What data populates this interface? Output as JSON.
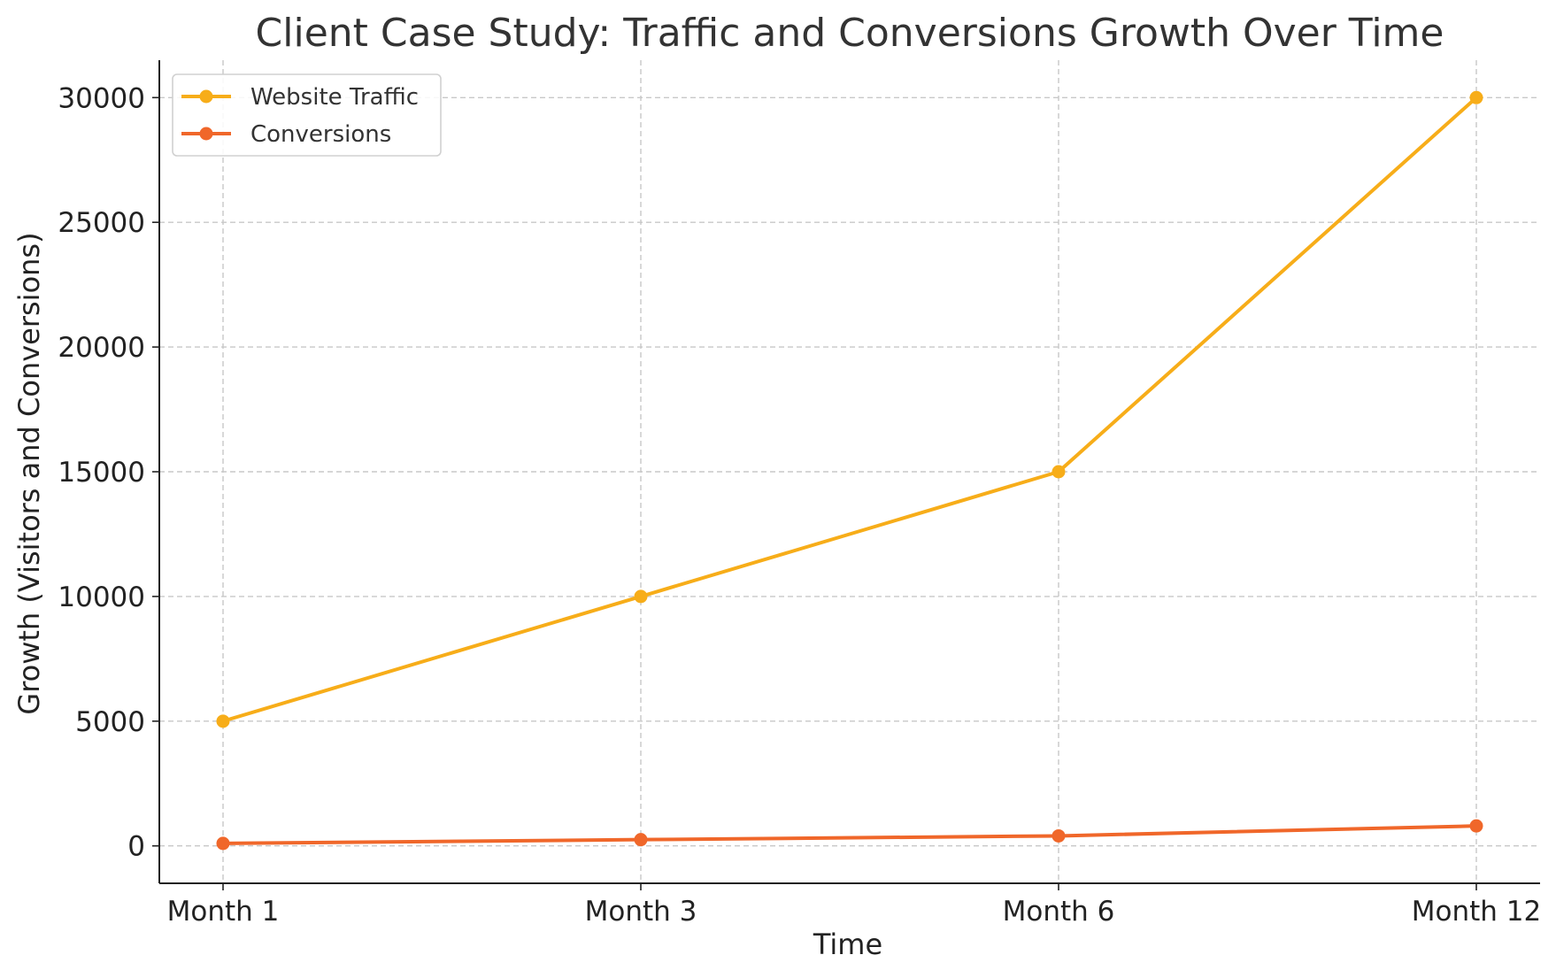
{
  "chart_data": {
    "type": "line",
    "title": "Client Case Study: Traffic and Conversions Growth Over Time",
    "xlabel": "Time",
    "ylabel": "Growth (Visitors and Conversions)",
    "categories": [
      "Month 1",
      "Month 3",
      "Month 6",
      "Month 12"
    ],
    "ylim": [
      -1500,
      31500
    ],
    "yticks": [
      0,
      5000,
      10000,
      15000,
      20000,
      25000,
      30000
    ],
    "grid": true,
    "legend_position": "top-left",
    "series": [
      {
        "name": "Website Traffic",
        "color": "#F7AD19",
        "marker": "circle",
        "values": [
          5000,
          10000,
          15000,
          30000
        ]
      },
      {
        "name": "Conversions",
        "color": "#F0672A",
        "marker": "circle",
        "values": [
          100,
          250,
          400,
          800
        ]
      }
    ]
  }
}
